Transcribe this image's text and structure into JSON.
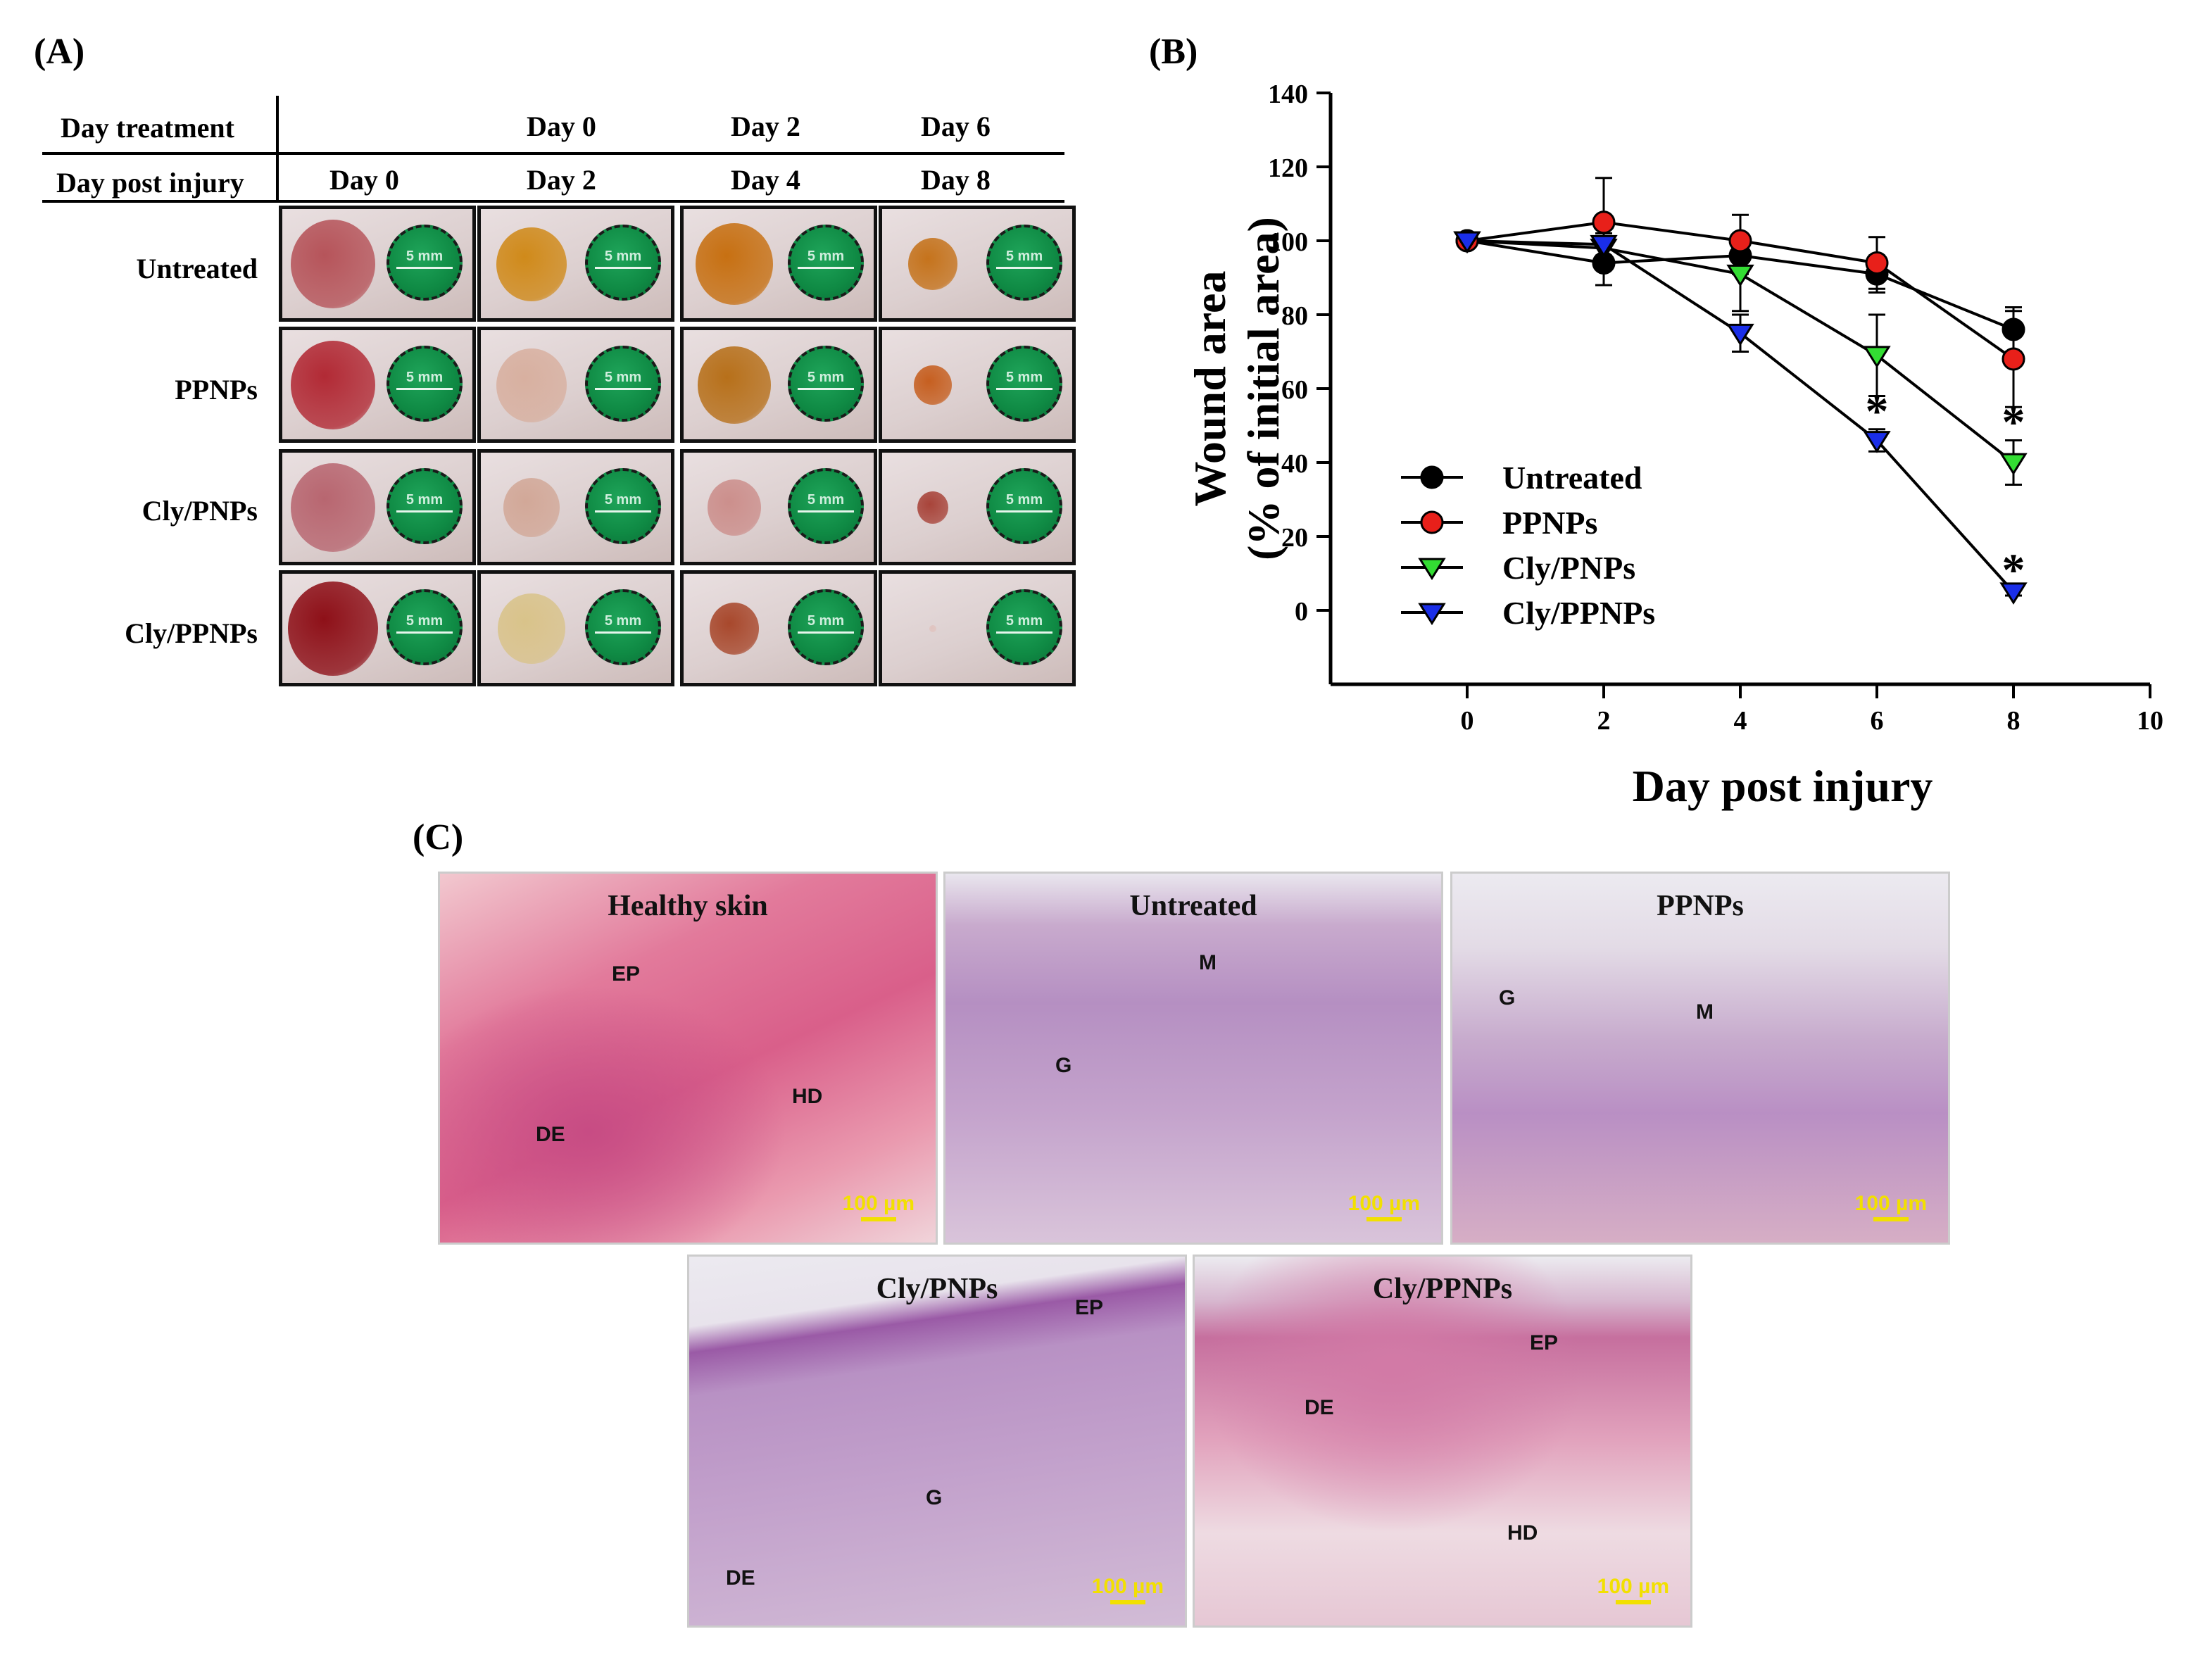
{
  "panel_a": {
    "label": "(A)",
    "header_treatment": "Day treatment",
    "header_post_injury": "Day post injury",
    "treatment_days": [
      "",
      "Day 0",
      "Day 2",
      "Day 6"
    ],
    "post_injury_days": [
      "Day 0",
      "Day 2",
      "Day 4",
      "Day 8"
    ],
    "groups": [
      "Untreated",
      "PPNPs",
      "Cly/PNPs",
      "Cly/PPNPs"
    ],
    "ruler_label": "5 mm"
  },
  "panel_b": {
    "label": "(B)",
    "chart_data": {
      "type": "line",
      "xlabel": "Day post injury",
      "ylabel_line1": "Wound area",
      "ylabel_line2": "(% of initial area)",
      "xlim": [
        -2,
        10
      ],
      "ylim": [
        -20,
        140
      ],
      "xticks": [
        0,
        2,
        4,
        6,
        8,
        10
      ],
      "yticks": [
        0,
        20,
        40,
        60,
        80,
        100,
        120,
        140
      ],
      "x": [
        0,
        2,
        4,
        6,
        8
      ],
      "legend_position": "bottom-left",
      "significance_marker": "*",
      "series": [
        {
          "name": "Untreated",
          "marker": "circle",
          "color": "#000000",
          "values": [
            100,
            94,
            96,
            91,
            76
          ],
          "errors": [
            1,
            6,
            5,
            5,
            6
          ],
          "significant": [
            false,
            false,
            false,
            false,
            false
          ]
        },
        {
          "name": "PPNPs",
          "marker": "circle",
          "color": "#e8201a",
          "values": [
            100,
            105,
            100,
            94,
            68
          ],
          "errors": [
            1,
            12,
            7,
            7,
            13
          ],
          "significant": [
            false,
            false,
            false,
            false,
            false
          ]
        },
        {
          "name": "Cly/PNPs",
          "marker": "triangle-down",
          "color": "#33dd33",
          "values": [
            100,
            98,
            91,
            69,
            40
          ],
          "errors": [
            1,
            4,
            10,
            11,
            6
          ],
          "significant": [
            false,
            false,
            false,
            false,
            true
          ]
        },
        {
          "name": "Cly/PPNPs",
          "marker": "triangle-down",
          "color": "#1a2ee8",
          "values": [
            100,
            99,
            75,
            46,
            5
          ],
          "errors": [
            1,
            3,
            5,
            3,
            1
          ],
          "significant": [
            false,
            false,
            false,
            true,
            true
          ]
        }
      ]
    }
  },
  "panel_c": {
    "label": "(C)",
    "scale_bar": "100 µm",
    "images": [
      {
        "title": "Healthy skin",
        "tags": [
          "EP",
          "HD",
          "DE"
        ]
      },
      {
        "title": "Untreated",
        "tags": [
          "M",
          "G"
        ]
      },
      {
        "title": "PPNPs",
        "tags": [
          "G",
          "M"
        ]
      },
      {
        "title": "Cly/PNPs",
        "tags": [
          "EP",
          "G",
          "DE"
        ]
      },
      {
        "title": "Cly/PPNPs",
        "tags": [
          "EP",
          "DE",
          "HD"
        ]
      }
    ]
  }
}
